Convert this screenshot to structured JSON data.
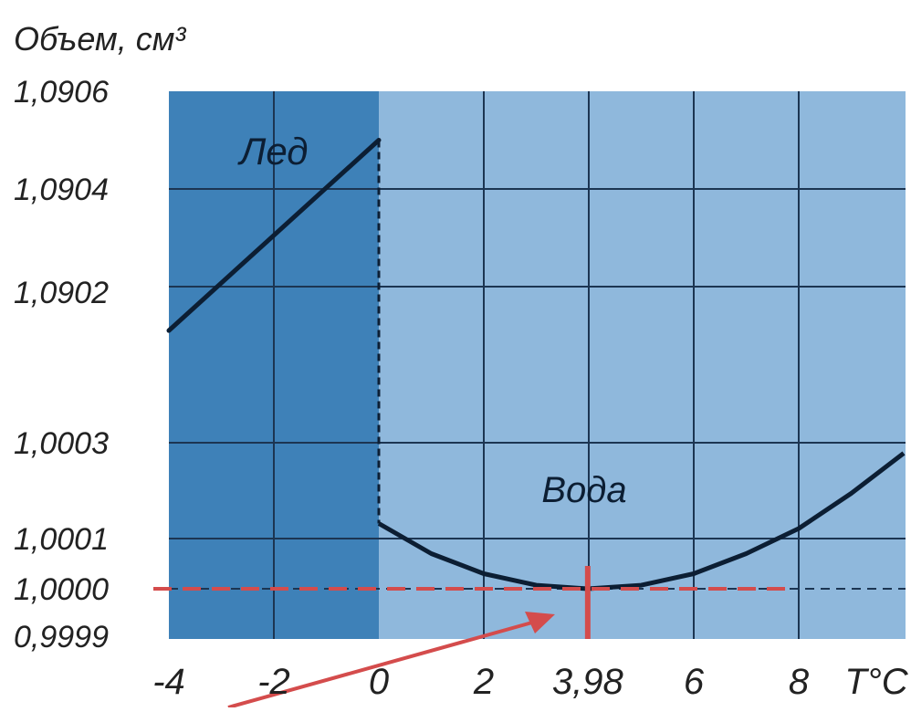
{
  "chart_data": {
    "type": "line",
    "title": "",
    "ylabel": "Объем, см³",
    "xlabel": "T°C",
    "x_ticks": [
      "-4",
      "-2",
      "0",
      "2",
      "3,98",
      "6",
      "8"
    ],
    "y_ticks": [
      "1,0906",
      "1,0904",
      "1,0902",
      "1,0003",
      "1,0001",
      "1,0000",
      "0,9999"
    ],
    "xlim": [
      -4,
      10
    ],
    "y_scale": "broken",
    "region_labels": {
      "ice": "Лед",
      "water": "Вода"
    },
    "series": [
      {
        "name": "Лед",
        "x": [
          -4,
          0
        ],
        "y": [
          1.09011,
          1.0905
        ]
      },
      {
        "name": "Вода",
        "x": [
          0,
          1,
          2,
          3,
          3.98,
          5,
          6,
          7,
          8,
          9,
          10
        ],
        "y": [
          1.00013,
          1.00007,
          1.00003,
          1.000007,
          1.0,
          1.000007,
          1.00003,
          1.00007,
          1.00012,
          1.00019,
          1.00027
        ]
      }
    ],
    "phase_transition": {
      "x": 0,
      "y_from": 1.00013,
      "y_to": 1.0905
    },
    "reference_line": {
      "y": 1.0,
      "style": "dashed"
    },
    "highlight": {
      "x": 3.98,
      "marker_color": "#d44c4c",
      "annotation": "arrow"
    },
    "grid": true,
    "colors": {
      "ice_region": "#3e81b8",
      "water_region": "#8fb8dc",
      "grid": "#1c3552",
      "curve": "#0c1e33",
      "highlight": "#d44c4c",
      "axis_text": "#222222"
    }
  }
}
